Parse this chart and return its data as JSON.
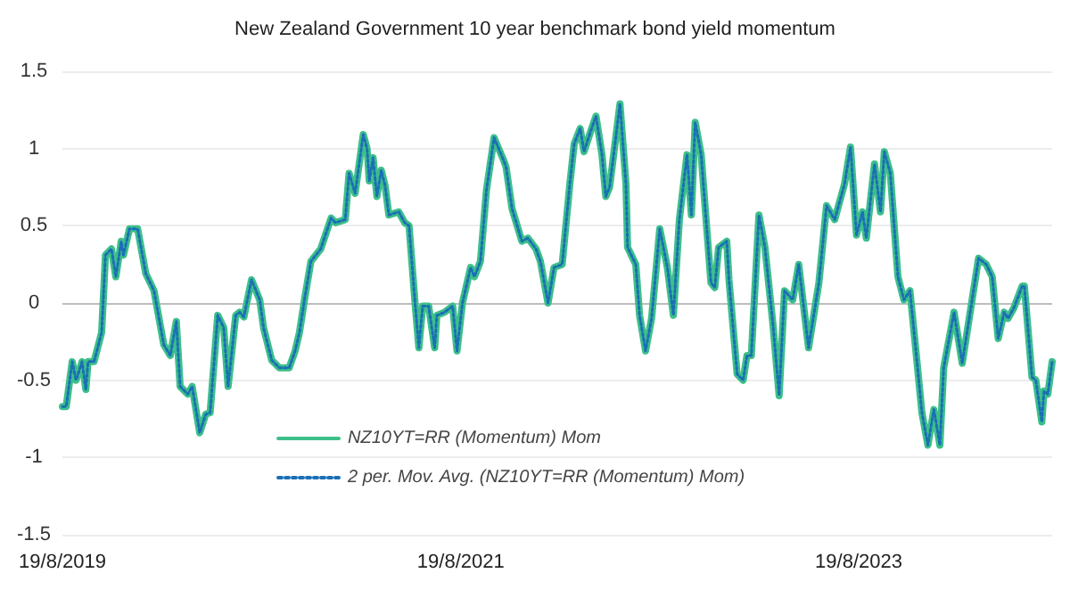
{
  "chart_data": {
    "type": "line",
    "title": "New Zealand Government 10 year benchmark bond yield momentum",
    "x": [
      "2019-08-19",
      "2019-08-26",
      "2019-09-06",
      "2019-09-13",
      "2019-09-24",
      "2019-10-01",
      "2019-10-05",
      "2019-10-16",
      "2019-10-30",
      "2019-11-06",
      "2019-11-17",
      "2019-11-25",
      "2019-12-05",
      "2019-12-09",
      "2019-12-20",
      "2020-01-04",
      "2020-01-19",
      "2020-02-03",
      "2020-02-21",
      "2020-03-04",
      "2020-03-15",
      "2020-03-22",
      "2020-04-05",
      "2020-04-13",
      "2020-04-27",
      "2020-05-08",
      "2020-05-16",
      "2020-05-30",
      "2020-06-10",
      "2020-06-18",
      "2020-07-02",
      "2020-07-09",
      "2020-07-17",
      "2020-07-31",
      "2020-08-15",
      "2020-08-22",
      "2020-09-06",
      "2020-09-20",
      "2020-10-08",
      "2020-10-19",
      "2020-10-27",
      "2020-11-06",
      "2020-11-17",
      "2020-12-05",
      "2020-12-24",
      "2021-01-01",
      "2021-01-19",
      "2021-01-26",
      "2021-02-06",
      "2021-02-21",
      "2021-02-28",
      "2021-03-04",
      "2021-03-11",
      "2021-03-18",
      "2021-03-26",
      "2021-04-02",
      "2021-04-09",
      "2021-04-27",
      "2021-05-08",
      "2021-05-16",
      "2021-05-27",
      "2021-06-03",
      "2021-06-10",
      "2021-06-21",
      "2021-07-02",
      "2021-07-06",
      "2021-07-20",
      "2021-08-04",
      "2021-08-12",
      "2021-08-22",
      "2021-09-06",
      "2021-09-13",
      "2021-09-24",
      "2021-10-05",
      "2021-10-19",
      "2021-11-06",
      "2021-11-10",
      "2021-11-21",
      "2021-12-09",
      "2021-12-20",
      "2022-01-04",
      "2022-01-12",
      "2022-01-26",
      "2022-02-06",
      "2022-02-21",
      "2022-03-07",
      "2022-03-15",
      "2022-03-26",
      "2022-04-02",
      "2022-04-16",
      "2022-04-24",
      "2022-05-05",
      "2022-05-12",
      "2022-05-19",
      "2022-06-07",
      "2022-06-18",
      "2022-06-21",
      "2022-07-06",
      "2022-07-13",
      "2022-07-24",
      "2022-08-04",
      "2022-08-19",
      "2022-09-02",
      "2022-09-13",
      "2022-09-24",
      "2022-10-08",
      "2022-10-16",
      "2022-10-23",
      "2022-11-03",
      "2022-11-10",
      "2022-11-21",
      "2022-11-28",
      "2022-12-05",
      "2022-12-20",
      "2022-12-24",
      "2023-01-08",
      "2023-01-19",
      "2023-01-26",
      "2023-02-03",
      "2023-02-17",
      "2023-02-28",
      "2023-03-15",
      "2023-03-26",
      "2023-04-05",
      "2023-04-20",
      "2023-05-01",
      "2023-05-19",
      "2023-06-07",
      "2023-06-21",
      "2023-07-06",
      "2023-07-24",
      "2023-08-04",
      "2023-08-15",
      "2023-08-26",
      "2023-09-02",
      "2023-09-17",
      "2023-09-28",
      "2023-10-05",
      "2023-10-16",
      "2023-10-30",
      "2023-11-10",
      "2023-11-21",
      "2023-12-02",
      "2023-12-13",
      "2023-12-24",
      "2024-01-04",
      "2024-01-15",
      "2024-01-22",
      "2024-02-10",
      "2024-02-25",
      "2024-03-26",
      "2024-04-09",
      "2024-04-20",
      "2024-05-01",
      "2024-05-12",
      "2024-05-19",
      "2024-05-30",
      "2024-06-14",
      "2024-06-18",
      "2024-07-02",
      "2024-07-09",
      "2024-07-20",
      "2024-07-24",
      "2024-07-31",
      "2024-08-08"
    ],
    "series": [
      {
        "name": "NZ10YT=RR (Momentum) Mom",
        "color": "#3dbf8a",
        "line_style": "solid",
        "values": [
          -0.67,
          -0.67,
          -0.38,
          -0.5,
          -0.38,
          -0.56,
          -0.38,
          -0.38,
          -0.19,
          0.31,
          0.35,
          0.17,
          0.4,
          0.31,
          0.48,
          0.48,
          0.19,
          0.08,
          -0.27,
          -0.34,
          -0.12,
          -0.54,
          -0.59,
          -0.54,
          -0.84,
          -0.72,
          -0.71,
          -0.08,
          -0.16,
          -0.54,
          -0.08,
          -0.06,
          -0.09,
          0.15,
          0.02,
          -0.16,
          -0.37,
          -0.42,
          -0.42,
          -0.31,
          -0.19,
          0.04,
          0.27,
          0.35,
          0.55,
          0.52,
          0.54,
          0.84,
          0.71,
          1.09,
          1.0,
          0.79,
          0.94,
          0.69,
          0.86,
          0.76,
          0.57,
          0.59,
          0.52,
          0.5,
          0.0,
          -0.29,
          -0.02,
          -0.02,
          -0.29,
          -0.08,
          -0.06,
          -0.02,
          -0.31,
          0.0,
          0.23,
          0.17,
          0.27,
          0.73,
          1.07,
          0.92,
          0.88,
          0.61,
          0.4,
          0.42,
          0.35,
          0.27,
          0.0,
          0.23,
          0.25,
          0.77,
          1.03,
          1.13,
          0.98,
          1.13,
          1.21,
          0.96,
          0.69,
          0.75,
          1.29,
          0.77,
          0.36,
          0.25,
          -0.08,
          -0.31,
          -0.1,
          0.48,
          0.23,
          -0.08,
          0.54,
          0.96,
          0.57,
          1.17,
          0.96,
          0.63,
          0.13,
          0.1,
          0.36,
          0.4,
          0.15,
          -0.46,
          -0.5,
          -0.34,
          -0.34,
          0.57,
          0.36,
          -0.15,
          -0.6,
          0.08,
          0.02,
          0.25,
          -0.29,
          0.13,
          0.63,
          0.54,
          0.77,
          1.01,
          0.44,
          0.59,
          0.42,
          0.9,
          0.59,
          0.98,
          0.84,
          0.17,
          0.02,
          0.08,
          -0.31,
          -0.71,
          -0.92,
          -0.69,
          -0.92,
          -0.42,
          -0.06,
          -0.39,
          0.29,
          0.25,
          0.17,
          -0.23,
          -0.06,
          -0.1,
          -0.03,
          0.11,
          0.11,
          -0.48,
          -0.5,
          -0.77,
          -0.57,
          -0.59,
          -0.38
        ]
      },
      {
        "name": "2 per. Mov. Avg. (NZ10YT=RR (Momentum) Mom)",
        "color": "#1a6fb5",
        "line_style": "dotted",
        "values": [
          -0.67,
          -0.67,
          -0.38,
          -0.5,
          -0.38,
          -0.56,
          -0.38,
          -0.38,
          -0.19,
          0.31,
          0.35,
          0.17,
          0.4,
          0.31,
          0.48,
          0.48,
          0.19,
          0.08,
          -0.27,
          -0.34,
          -0.12,
          -0.54,
          -0.59,
          -0.54,
          -0.84,
          -0.72,
          -0.71,
          -0.08,
          -0.16,
          -0.54,
          -0.08,
          -0.06,
          -0.09,
          0.15,
          0.02,
          -0.16,
          -0.37,
          -0.42,
          -0.42,
          -0.31,
          -0.19,
          0.04,
          0.27,
          0.35,
          0.55,
          0.52,
          0.54,
          0.84,
          0.71,
          1.09,
          1.0,
          0.79,
          0.94,
          0.69,
          0.86,
          0.76,
          0.57,
          0.59,
          0.52,
          0.5,
          0.0,
          -0.29,
          -0.02,
          -0.02,
          -0.29,
          -0.08,
          -0.06,
          -0.02,
          -0.31,
          0.0,
          0.23,
          0.17,
          0.27,
          0.73,
          1.07,
          0.92,
          0.88,
          0.61,
          0.4,
          0.42,
          0.35,
          0.27,
          0.0,
          0.23,
          0.25,
          0.77,
          1.03,
          1.13,
          0.98,
          1.13,
          1.21,
          0.96,
          0.69,
          0.75,
          1.29,
          0.77,
          0.36,
          0.25,
          -0.08,
          -0.31,
          -0.1,
          0.48,
          0.23,
          -0.08,
          0.54,
          0.96,
          0.57,
          1.17,
          0.96,
          0.63,
          0.13,
          0.1,
          0.36,
          0.4,
          0.15,
          -0.46,
          -0.5,
          -0.34,
          -0.34,
          0.57,
          0.36,
          -0.15,
          -0.6,
          0.08,
          0.02,
          0.25,
          -0.29,
          0.13,
          0.63,
          0.54,
          0.77,
          1.01,
          0.44,
          0.59,
          0.42,
          0.9,
          0.59,
          0.98,
          0.84,
          0.17,
          0.02,
          0.08,
          -0.31,
          -0.71,
          -0.92,
          -0.69,
          -0.92,
          -0.42,
          -0.06,
          -0.39,
          0.29,
          0.25,
          0.17,
          -0.23,
          -0.06,
          -0.1,
          -0.03,
          0.11,
          0.11,
          -0.48,
          -0.5,
          -0.77,
          -0.57,
          -0.59,
          -0.38
        ]
      }
    ],
    "xlim": [
      "2019-08-19",
      "2024-08-08"
    ],
    "xticks": [
      {
        "value": "2019-08-19",
        "label": "19/8/2019"
      },
      {
        "value": "2021-08-19",
        "label": "19/8/2021"
      },
      {
        "value": "2023-08-19",
        "label": "19/8/2023"
      }
    ],
    "ylim": [
      -1.5,
      1.5
    ],
    "yticks": [
      -1.5,
      -1,
      -0.5,
      0,
      0.5,
      1,
      1.5
    ],
    "grid": "y",
    "legend": "bottom"
  }
}
